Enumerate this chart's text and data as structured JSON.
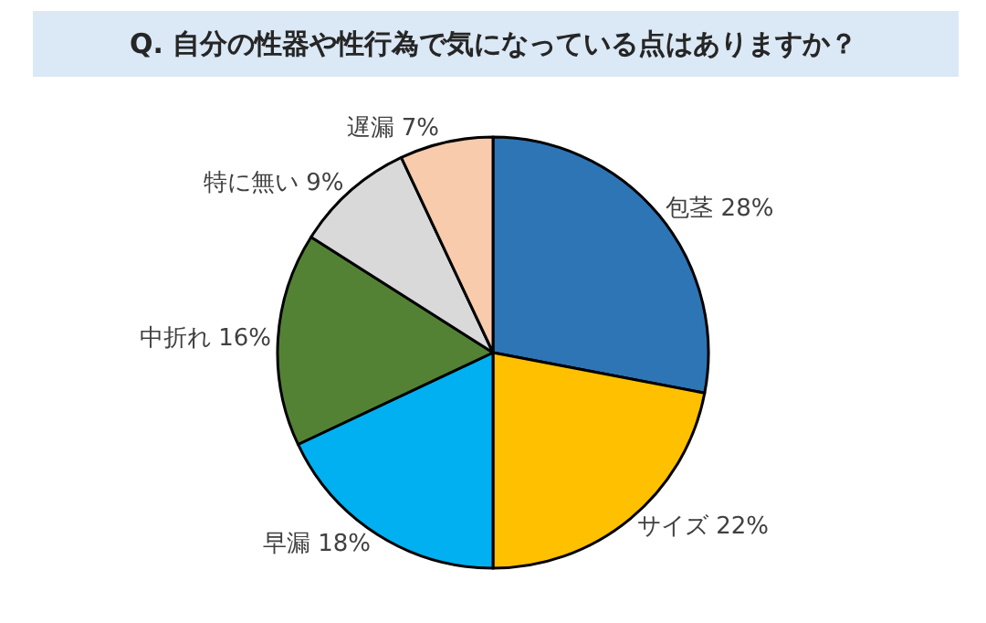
{
  "chart_data": {
    "type": "pie",
    "title": "Q. 自分の性器や性行為で気になっている点はありますか？",
    "categories": [
      "包茎",
      "サイズ",
      "早漏",
      "中折れ",
      "特に無い",
      "遅漏"
    ],
    "values": [
      28,
      22,
      18,
      16,
      9,
      7
    ],
    "colors": [
      "#2e75b6",
      "#ffc000",
      "#00b0f0",
      "#548235",
      "#d9d9d9",
      "#f8cbad"
    ],
    "value_labels": [
      "28%",
      "22%",
      "18%",
      "16%",
      "9%",
      "7%"
    ],
    "legend": false
  }
}
